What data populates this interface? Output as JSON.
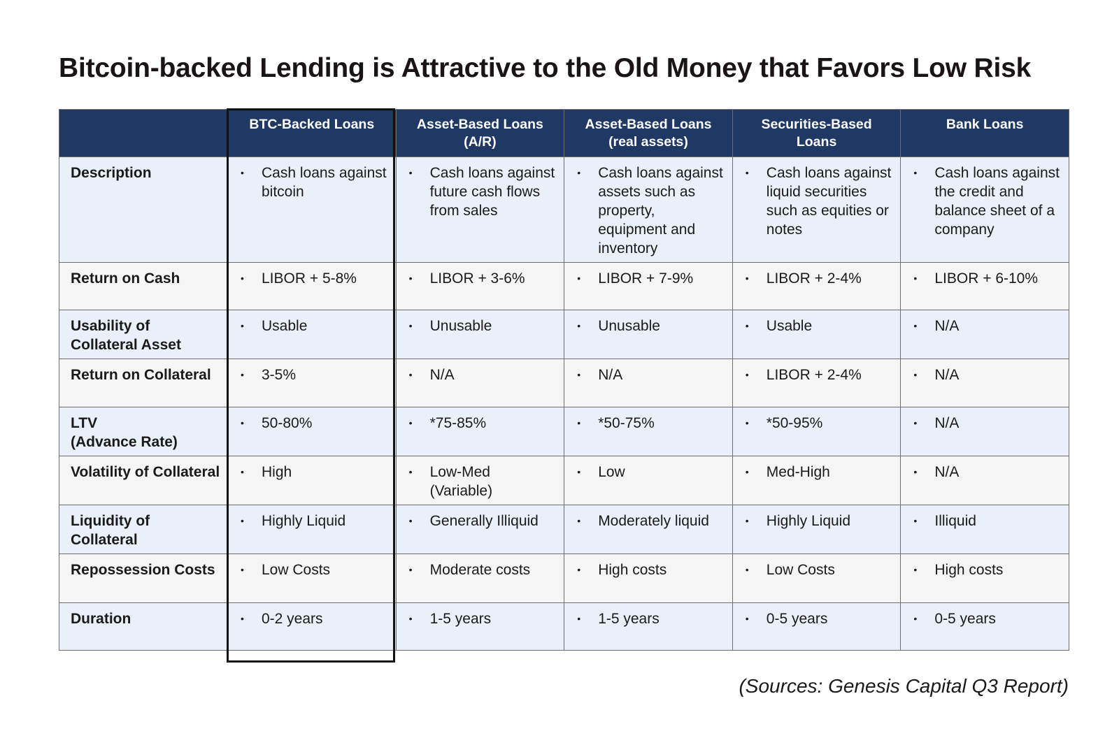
{
  "title": "Bitcoin-backed Lending is Attractive to the Old Money that Favors Low Risk",
  "columns": [
    "",
    "BTC-Backed Loans",
    "Asset-Based Loans\n(A/R)",
    "Asset-Based Loans\n(real assets)",
    "Securities-Based\nLoans",
    "Bank Loans"
  ],
  "rows": [
    {
      "label": "Description",
      "cells": [
        "Cash loans against bitcoin",
        "Cash loans against future cash flows from sales",
        "Cash loans against assets such as property, equipment and inventory",
        "Cash loans against liquid securities such as equities or notes",
        "Cash loans against the credit and balance sheet of a company"
      ]
    },
    {
      "label": "Return on Cash",
      "cells": [
        "LIBOR + 5-8%",
        "LIBOR + 3-6%",
        "LIBOR + 7-9%",
        "LIBOR + 2-4%",
        "LIBOR + 6-10%"
      ]
    },
    {
      "label": "Usability of Collateral Asset",
      "cells": [
        "Usable",
        "Unusable",
        "Unusable",
        "Usable",
        "N/A"
      ]
    },
    {
      "label": "Return on Collateral",
      "cells": [
        "3-5%",
        "N/A",
        "N/A",
        "LIBOR + 2-4%",
        "N/A"
      ]
    },
    {
      "label": "LTV\n(Advance Rate)",
      "cells": [
        "50-80%",
        "*75-85%",
        "*50-75%",
        "*50-95%",
        "N/A"
      ]
    },
    {
      "label": "Volatility of Collateral",
      "cells": [
        "High",
        "Low-Med\n(Variable)",
        "Low",
        "Med-High",
        "N/A"
      ]
    },
    {
      "label": "Liquidity of Collateral",
      "cells": [
        "Highly Liquid",
        "Generally Illiquid",
        "Moderately liquid",
        "Highly Liquid",
        "Illiquid"
      ]
    },
    {
      "label": "Repossession Costs",
      "cells": [
        "Low Costs",
        "Moderate costs",
        "High costs",
        "Low Costs",
        "High costs"
      ]
    },
    {
      "label": "Duration",
      "cells": [
        "0-2 years",
        "1-5 years",
        "1-5 years",
        "0-5 years",
        "0-5 years"
      ]
    }
  ],
  "bullet_char": "•",
  "source": "(Sources: Genesis Capital Q3 Report)",
  "colors": {
    "header_bg": "#1f3864",
    "band_light_blue": "#eaf0f9",
    "band_light_gray": "#f5f5f5"
  }
}
